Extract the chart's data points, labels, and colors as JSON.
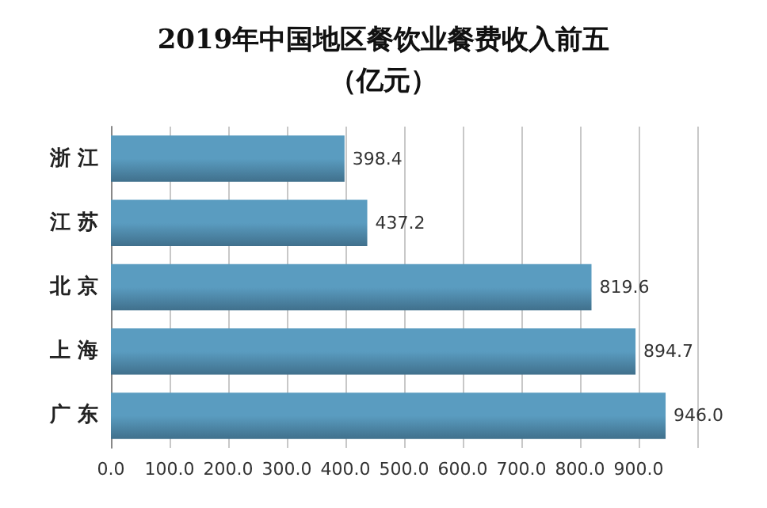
{
  "chart_data": {
    "type": "bar",
    "orientation": "horizontal",
    "title": "2019年中国地区餐饮业餐费收入前五",
    "subtitle": "（亿元）",
    "categories": [
      "浙 江",
      "江 苏",
      "北 京",
      "上 海",
      "广 东"
    ],
    "values": [
      398.4,
      437.2,
      819.6,
      894.7,
      946.0
    ],
    "value_labels": [
      "398.4",
      "437.2",
      "819.6",
      "894.7",
      "946.0"
    ],
    "color": "#5a9cc0",
    "xlim": [
      0,
      1000
    ],
    "xticks": [
      {
        "value": 0,
        "label": "0.0"
      },
      {
        "value": 100,
        "label": "100.0"
      },
      {
        "value": 200,
        "label": "200.0"
      },
      {
        "value": 300,
        "label": "300.0"
      },
      {
        "value": 400,
        "label": "400.0"
      },
      {
        "value": 500,
        "label": "500.0"
      },
      {
        "value": 600,
        "label": "600.0"
      },
      {
        "value": 700,
        "label": "700.0"
      },
      {
        "value": 800,
        "label": "800.0"
      },
      {
        "value": 900,
        "label": "900.0"
      },
      {
        "value": 1000,
        "label": null
      }
    ],
    "grid": "x"
  }
}
